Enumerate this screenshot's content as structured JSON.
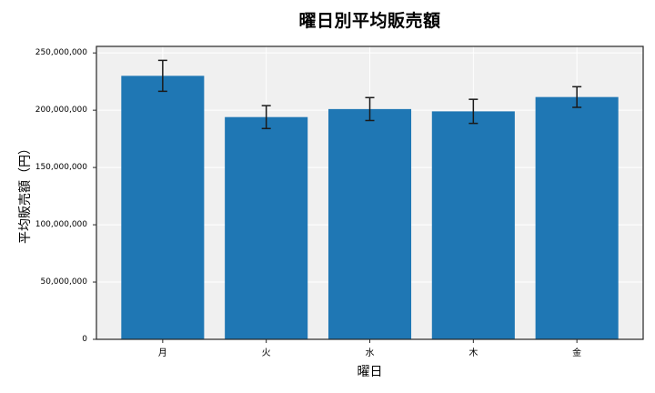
{
  "chart_data": {
    "type": "bar",
    "title": "曜日別平均販売額",
    "xlabel": "曜日",
    "ylabel": "平均販売額（円）",
    "categories": [
      "月",
      "火",
      "水",
      "木",
      "金"
    ],
    "values": [
      230000000,
      194000000,
      201000000,
      199000000,
      211500000
    ],
    "error_bars": [
      13500000,
      10000000,
      10000000,
      10500000,
      9000000
    ],
    "yticks": [
      0,
      50000000,
      100000000,
      150000000,
      200000000,
      250000000
    ],
    "ylim": [
      0,
      255700000
    ],
    "grid": true,
    "legend_position": "none",
    "colors": {
      "bar": "#1f77b4",
      "plot_background": "#f0f0f0",
      "figure_background": "#ffffff",
      "gridline": "#ffffff",
      "error_bar": "#1a1a1a",
      "spine": "#262626",
      "text": "#000000"
    }
  }
}
